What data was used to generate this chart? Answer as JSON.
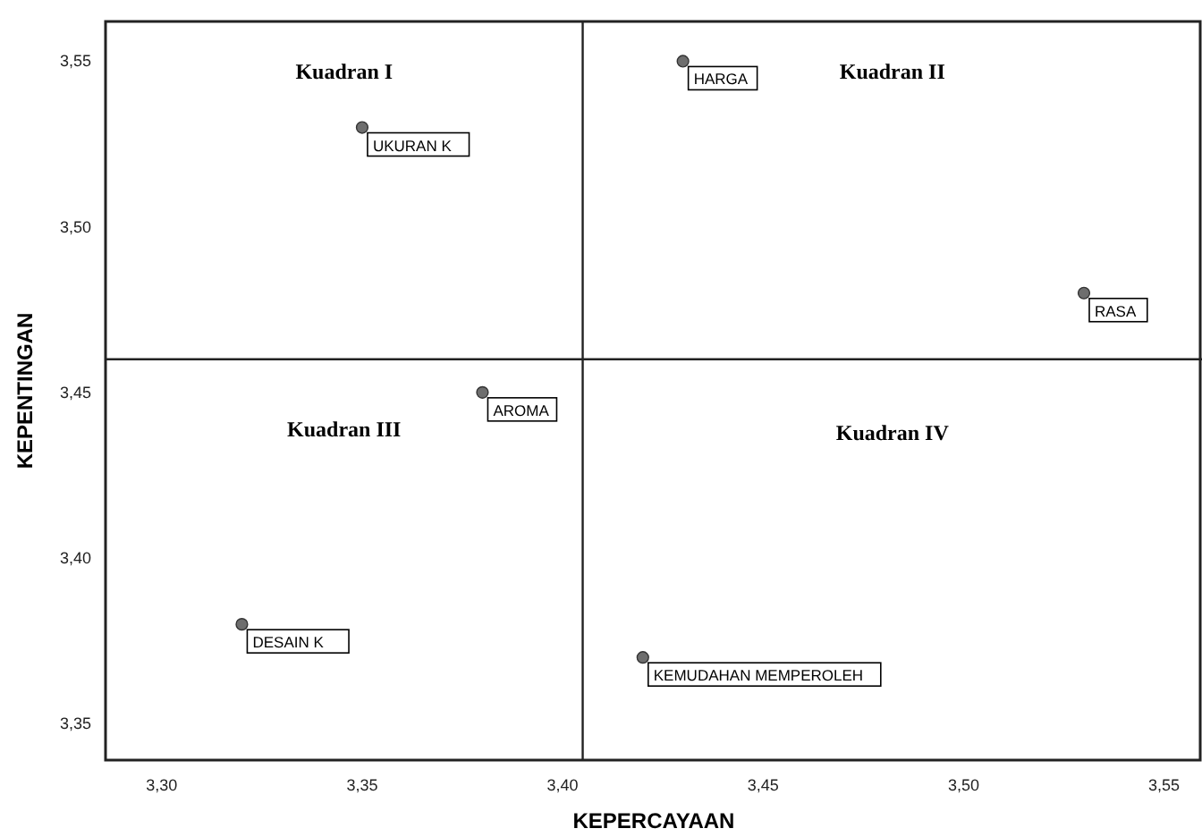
{
  "chart_data": {
    "type": "scatter",
    "xlabel": "KEPERCAYAAN",
    "ylabel": "KEPENTINGAN",
    "x": [
      3.35,
      3.43,
      3.53,
      3.38,
      3.32,
      3.42
    ],
    "values": [
      3.53,
      3.55,
      3.48,
      3.45,
      3.38,
      3.37
    ],
    "color": "#6e6e6e",
    "marker": "circle",
    "xlim": [
      3.286,
      3.559
    ],
    "ylim": [
      3.339,
      3.562
    ],
    "xticks": [
      {
        "value": 3.3,
        "label": "3,30"
      },
      {
        "value": 3.35,
        "label": "3,35"
      },
      {
        "value": 3.4,
        "label": "3,40"
      },
      {
        "value": 3.45,
        "label": "3,45"
      },
      {
        "value": 3.5,
        "label": "3,50"
      },
      {
        "value": 3.55,
        "label": "3,55"
      }
    ],
    "yticks": [
      {
        "value": 3.35,
        "label": "3,35"
      },
      {
        "value": 3.4,
        "label": "3,40"
      },
      {
        "value": 3.45,
        "label": "3,45"
      },
      {
        "value": 3.5,
        "label": "3,50"
      },
      {
        "value": 3.55,
        "label": "3,55"
      }
    ],
    "ref_lines": [
      {
        "axis": "x",
        "value": 3.405
      },
      {
        "axis": "y",
        "value": 3.46
      }
    ],
    "annotations": [
      {
        "text": "UKURAN K",
        "x": 3.35,
        "y": 3.53
      },
      {
        "text": "HARGA",
        "x": 3.43,
        "y": 3.55
      },
      {
        "text": "RASA",
        "x": 3.53,
        "y": 3.48
      },
      {
        "text": "AROMA",
        "x": 3.38,
        "y": 3.45
      },
      {
        "text": "DESAIN K",
        "x": 3.32,
        "y": 3.38
      },
      {
        "text": "KEMUDAHAN MEMPEROLEH",
        "x": 3.42,
        "y": 3.37
      },
      "Kuadran I",
      "Kuadran II",
      "Kuadran III",
      "Kuadran IV"
    ],
    "grid": false
  }
}
